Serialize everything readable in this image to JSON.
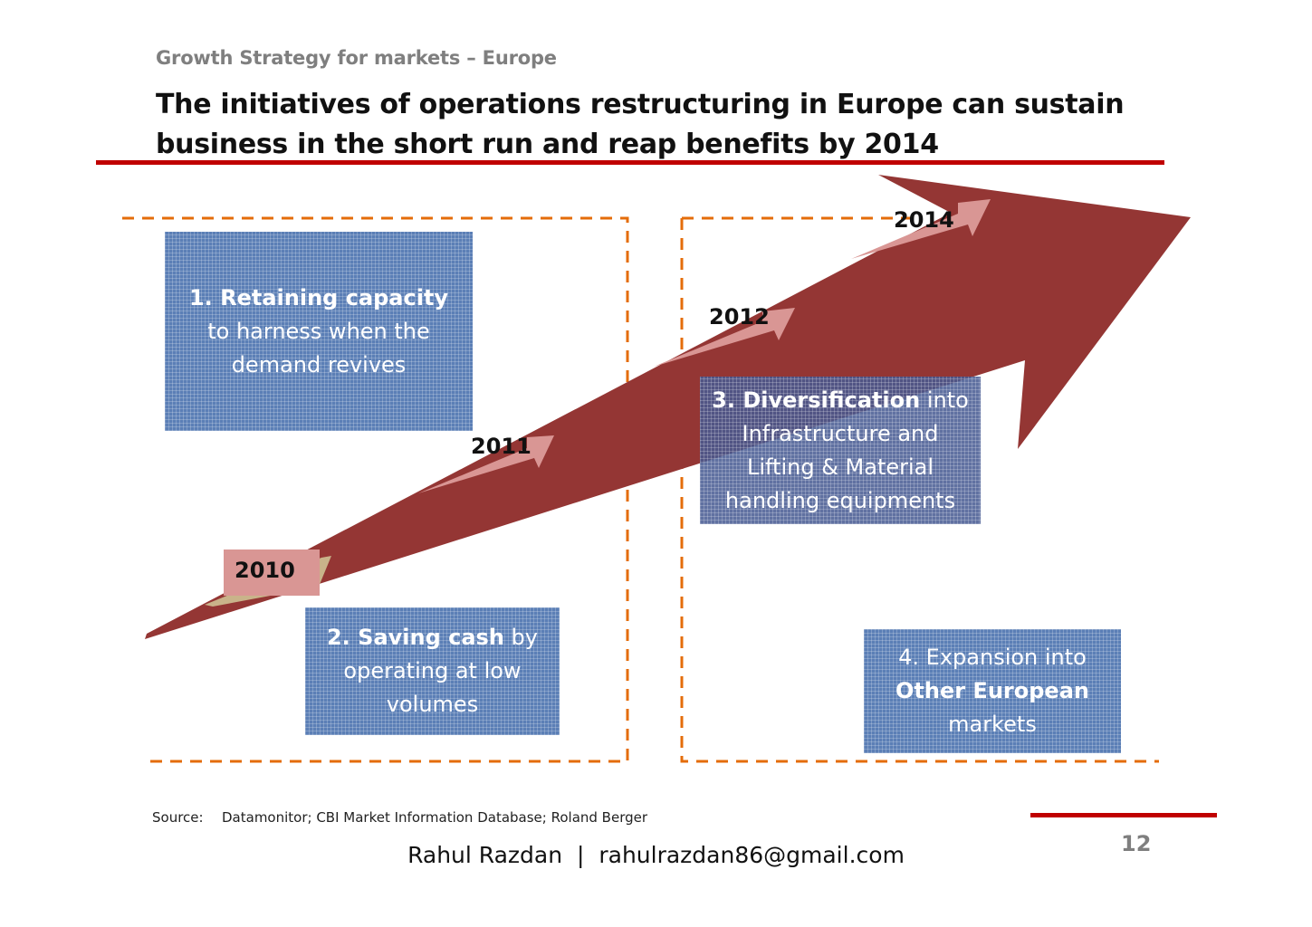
{
  "header": {
    "subtitle": "Growth Strategy for markets – Europe",
    "title": "The initiatives of operations restructuring in Europe can sustain business in the short run and reap benefits by 2014"
  },
  "colors": {
    "accent_red": "#c00000",
    "arrow": "#943634",
    "step_arrow": "#d99694",
    "box_blue": "#5b7fb6",
    "dash_orange": "#e46c0a"
  },
  "years": [
    "2010",
    "2011",
    "2012",
    "2014"
  ],
  "initiatives": [
    {
      "bold": "1. Retaining capacity",
      "rest": " to harness when the demand revives"
    },
    {
      "bold": "2. Saving cash",
      "rest": " by operating at low volumes"
    },
    {
      "bold": "3. Diversification",
      "rest": " into Infrastructure and Lifting & Material handling equipments"
    },
    {
      "pre": "4. Expansion into ",
      "bold": "Other European",
      "rest": " markets"
    }
  ],
  "footer": {
    "source_label": "Source:",
    "source_text": "Datamonitor; CBI Market Information Database; Roland Berger",
    "page_number": "12",
    "author": "Rahul Razdan",
    "separator": "|",
    "email": "rahulrazdan86@gmail.com"
  }
}
